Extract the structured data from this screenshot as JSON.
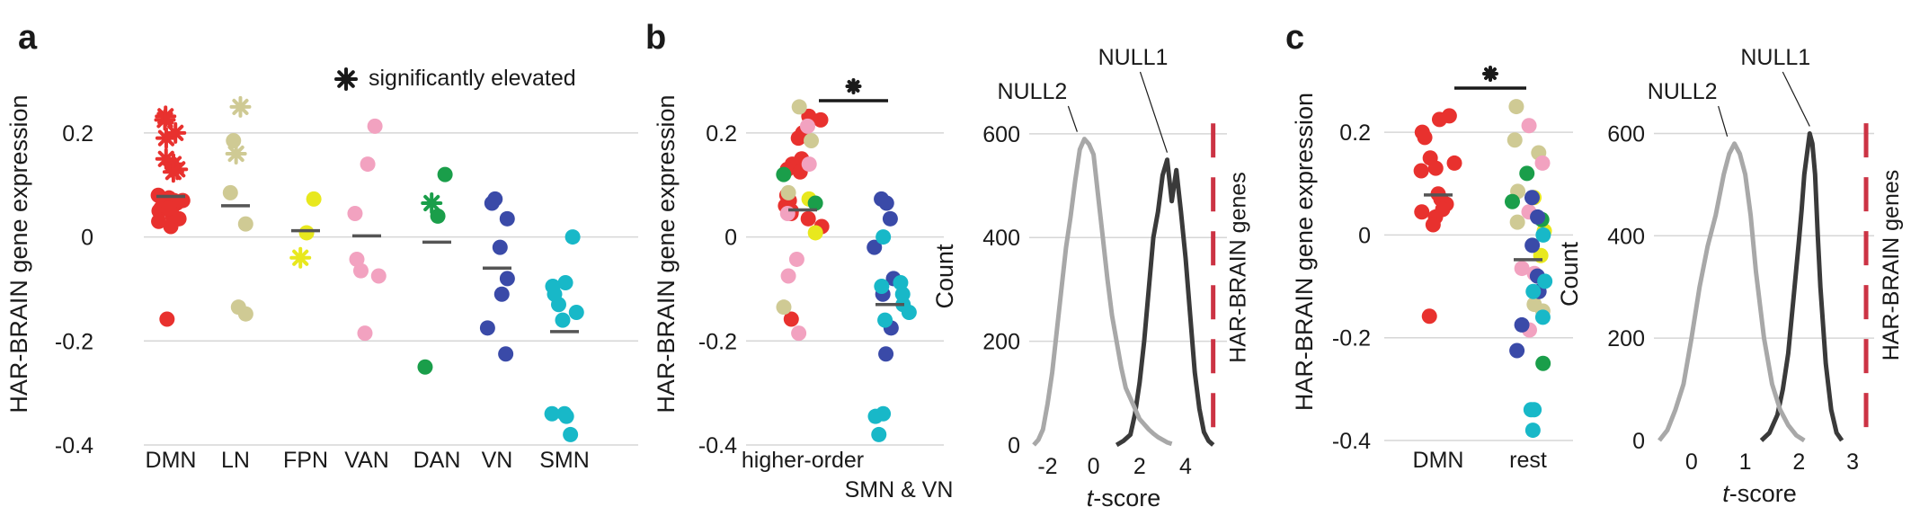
{
  "colors": {
    "DMN": "#e8312e",
    "LN": "#cfca94",
    "FPN": "#e8e81e",
    "VAN": "#f2a2c0",
    "DAN": "#1a9e4a",
    "VN": "#3a4aa8",
    "SMN": "#18b8c8",
    "mean": "#555555",
    "null1": "#3a3a3a",
    "null2": "#a8a8a8",
    "har": "#cc3344",
    "grid": "#d6d6d6"
  },
  "panels": {
    "a": {
      "letter": "a"
    },
    "b": {
      "letter": "b"
    },
    "c": {
      "letter": "c"
    }
  },
  "legend": {
    "text": "significantly elevated",
    "icon": "asterisk-icon"
  },
  "chart_data": [
    {
      "id": "a",
      "type": "scatter",
      "ylabel": "HAR-BRAIN gene expression",
      "ylim": [
        -0.4,
        0.3
      ],
      "yticks": [
        0.2,
        0,
        -0.2,
        -0.4
      ],
      "ytick_labels": [
        "0.2",
        "0",
        "-0.2",
        "-0.4"
      ],
      "grid": true,
      "categories": [
        "DMN",
        "LN",
        "FPN",
        "VAN",
        "DAN",
        "VN",
        "SMN"
      ],
      "groups": [
        {
          "name": "DMN",
          "mean": 0.078,
          "points": [
            0.035,
            0.045,
            0.05,
            0.055,
            0.06,
            0.07,
            0.075,
            0.08,
            0.02,
            0.04,
            0.065,
            0.07,
            0.03,
            0.055,
            -0.158
          ],
          "elevated": [
            0.232,
            0.225,
            0.2,
            0.19,
            0.15,
            0.14,
            0.13,
            0.125
          ]
        },
        {
          "name": "LN",
          "mean": 0.06,
          "points": [
            0.185,
            0.085,
            0.025,
            -0.135,
            -0.148
          ],
          "elevated": [
            0.25,
            0.16
          ]
        },
        {
          "name": "FPN",
          "mean": 0.012,
          "points": [
            0.073,
            0.008
          ],
          "elevated": [
            -0.04
          ]
        },
        {
          "name": "VAN",
          "mean": 0.002,
          "points": [
            0.213,
            0.14,
            0.045,
            -0.043,
            -0.065,
            -0.075,
            -0.185
          ],
          "elevated": []
        },
        {
          "name": "DAN",
          "mean": -0.01,
          "points": [
            0.12,
            0.04,
            -0.25
          ],
          "elevated": [
            0.065
          ]
        },
        {
          "name": "VN",
          "mean": -0.06,
          "points": [
            0.073,
            0.065,
            0.035,
            -0.02,
            -0.08,
            -0.11,
            -0.175,
            -0.225
          ],
          "elevated": []
        },
        {
          "name": "SMN",
          "mean": -0.182,
          "points": [
            0.0,
            -0.088,
            -0.095,
            -0.11,
            -0.13,
            -0.145,
            -0.16,
            -0.34,
            -0.34,
            -0.345,
            -0.38
          ],
          "elevated": []
        }
      ]
    },
    {
      "id": "b",
      "type": "scatter",
      "ylabel": "HAR-BRAIN gene expression",
      "ylim": [
        -0.4,
        0.3
      ],
      "yticks": [
        0.2,
        0,
        -0.2,
        -0.4
      ],
      "ytick_labels": [
        "0.2",
        "0",
        "-0.2",
        "-0.4"
      ],
      "grid": true,
      "categories": [
        "higher-order",
        "SMN & VN"
      ],
      "significance": true,
      "groups": [
        {
          "name": "higher-order",
          "mean": 0.052,
          "points": [
            {
              "v": 0.232,
              "g": "DMN"
            },
            {
              "v": 0.225,
              "g": "DMN"
            },
            {
              "v": 0.2,
              "g": "DMN"
            },
            {
              "v": 0.19,
              "g": "DMN"
            },
            {
              "v": 0.15,
              "g": "DMN"
            },
            {
              "v": 0.14,
              "g": "DMN"
            },
            {
              "v": 0.13,
              "g": "DMN"
            },
            {
              "v": 0.125,
              "g": "DMN"
            },
            {
              "v": 0.08,
              "g": "DMN"
            },
            {
              "v": 0.07,
              "g": "DMN"
            },
            {
              "v": 0.06,
              "g": "DMN"
            },
            {
              "v": 0.05,
              "g": "DMN"
            },
            {
              "v": 0.045,
              "g": "DMN"
            },
            {
              "v": 0.035,
              "g": "DMN"
            },
            {
              "v": 0.02,
              "g": "DMN"
            },
            {
              "v": -0.158,
              "g": "DMN"
            },
            {
              "v": 0.25,
              "g": "LN"
            },
            {
              "v": 0.185,
              "g": "LN"
            },
            {
              "v": 0.085,
              "g": "LN"
            },
            {
              "v": -0.135,
              "g": "LN"
            },
            {
              "v": 0.073,
              "g": "FPN"
            },
            {
              "v": 0.008,
              "g": "FPN"
            },
            {
              "v": 0.213,
              "g": "VAN"
            },
            {
              "v": 0.14,
              "g": "VAN"
            },
            {
              "v": 0.045,
              "g": "VAN"
            },
            {
              "v": -0.043,
              "g": "VAN"
            },
            {
              "v": -0.075,
              "g": "VAN"
            },
            {
              "v": -0.185,
              "g": "VAN"
            },
            {
              "v": 0.12,
              "g": "DAN"
            },
            {
              "v": 0.065,
              "g": "DAN"
            }
          ]
        },
        {
          "name": "SMN & VN",
          "mean": -0.13,
          "points": [
            {
              "v": 0.073,
              "g": "VN"
            },
            {
              "v": 0.065,
              "g": "VN"
            },
            {
              "v": 0.035,
              "g": "VN"
            },
            {
              "v": -0.02,
              "g": "VN"
            },
            {
              "v": -0.08,
              "g": "VN"
            },
            {
              "v": -0.11,
              "g": "VN"
            },
            {
              "v": -0.175,
              "g": "VN"
            },
            {
              "v": -0.225,
              "g": "VN"
            },
            {
              "v": 0.0,
              "g": "SMN"
            },
            {
              "v": -0.088,
              "g": "SMN"
            },
            {
              "v": -0.095,
              "g": "SMN"
            },
            {
              "v": -0.11,
              "g": "SMN"
            },
            {
              "v": -0.13,
              "g": "SMN"
            },
            {
              "v": -0.145,
              "g": "SMN"
            },
            {
              "v": -0.16,
              "g": "SMN"
            },
            {
              "v": -0.34,
              "g": "SMN"
            },
            {
              "v": -0.345,
              "g": "SMN"
            },
            {
              "v": -0.38,
              "g": "SMN"
            }
          ]
        }
      ]
    },
    {
      "id": "b2",
      "type": "line",
      "xlabel": "t-score",
      "xlabel_main": "t",
      "xlabel_rest": "-score",
      "ylabel": "Count",
      "xlim": [
        -2.8,
        5.8
      ],
      "ylim": [
        0,
        650
      ],
      "xticks": [
        -2,
        0,
        2,
        4
      ],
      "xtick_labels": [
        "-2",
        "0",
        "2",
        "4"
      ],
      "yticks": [
        0,
        200,
        400,
        600
      ],
      "ytick_labels": [
        "0",
        "200",
        "400",
        "600"
      ],
      "grid": true,
      "series": [
        {
          "name": "NULL1",
          "x": [
            1.0,
            1.3,
            1.6,
            1.8,
            2.0,
            2.2,
            2.4,
            2.6,
            2.8,
            3.0,
            3.2,
            3.4,
            3.6,
            3.8,
            4.0,
            4.2,
            4.4,
            4.6,
            4.8,
            5.0,
            5.2
          ],
          "y": [
            0,
            8,
            20,
            60,
            120,
            200,
            300,
            400,
            450,
            520,
            550,
            470,
            530,
            450,
            360,
            250,
            140,
            70,
            25,
            8,
            0
          ]
        },
        {
          "name": "NULL2",
          "x": [
            -2.6,
            -2.4,
            -2.2,
            -2.0,
            -1.8,
            -1.6,
            -1.4,
            -1.2,
            -1.0,
            -0.8,
            -0.6,
            -0.4,
            -0.2,
            0.0,
            0.2,
            0.4,
            0.6,
            0.8,
            1.0,
            1.2,
            1.4,
            1.6,
            1.8,
            2.0,
            2.2,
            2.4,
            2.6,
            2.8,
            3.0,
            3.2,
            3.4
          ],
          "y": [
            0,
            10,
            30,
            80,
            140,
            220,
            300,
            380,
            440,
            510,
            570,
            590,
            580,
            560,
            480,
            400,
            320,
            250,
            200,
            150,
            110,
            90,
            70,
            50,
            40,
            30,
            22,
            15,
            10,
            5,
            2
          ]
        }
      ],
      "har_line_x": 5.2,
      "har_label": "HAR-BRAIN genes"
    },
    {
      "id": "c",
      "type": "scatter",
      "ylabel": "HAR-BRAIN gene expression",
      "ylim": [
        -0.4,
        0.3
      ],
      "yticks": [
        0.2,
        0,
        -0.2,
        -0.4
      ],
      "ytick_labels": [
        "0.2",
        "0",
        "-0.2",
        "-0.4"
      ],
      "grid": true,
      "categories": [
        "DMN",
        "rest"
      ],
      "significance": true,
      "groups": [
        {
          "name": "DMN",
          "mean": 0.078,
          "points": [
            {
              "v": 0.232,
              "g": "DMN"
            },
            {
              "v": 0.225,
              "g": "DMN"
            },
            {
              "v": 0.2,
              "g": "DMN"
            },
            {
              "v": 0.19,
              "g": "DMN"
            },
            {
              "v": 0.15,
              "g": "DMN"
            },
            {
              "v": 0.14,
              "g": "DMN"
            },
            {
              "v": 0.13,
              "g": "DMN"
            },
            {
              "v": 0.125,
              "g": "DMN"
            },
            {
              "v": 0.08,
              "g": "DMN"
            },
            {
              "v": 0.07,
              "g": "DMN"
            },
            {
              "v": 0.06,
              "g": "DMN"
            },
            {
              "v": 0.05,
              "g": "DMN"
            },
            {
              "v": 0.045,
              "g": "DMN"
            },
            {
              "v": 0.035,
              "g": "DMN"
            },
            {
              "v": 0.02,
              "g": "DMN"
            },
            {
              "v": -0.158,
              "g": "DMN"
            }
          ]
        },
        {
          "name": "rest",
          "mean": -0.048,
          "points": [
            {
              "v": 0.25,
              "g": "LN"
            },
            {
              "v": 0.185,
              "g": "LN"
            },
            {
              "v": 0.16,
              "g": "LN"
            },
            {
              "v": 0.085,
              "g": "LN"
            },
            {
              "v": 0.025,
              "g": "LN"
            },
            {
              "v": -0.135,
              "g": "LN"
            },
            {
              "v": -0.148,
              "g": "LN"
            },
            {
              "v": 0.073,
              "g": "FPN"
            },
            {
              "v": 0.008,
              "g": "FPN"
            },
            {
              "v": -0.04,
              "g": "FPN"
            },
            {
              "v": 0.213,
              "g": "VAN"
            },
            {
              "v": 0.14,
              "g": "VAN"
            },
            {
              "v": 0.045,
              "g": "VAN"
            },
            {
              "v": -0.065,
              "g": "VAN"
            },
            {
              "v": -0.075,
              "g": "VAN"
            },
            {
              "v": -0.185,
              "g": "VAN"
            },
            {
              "v": 0.12,
              "g": "DAN"
            },
            {
              "v": 0.065,
              "g": "DAN"
            },
            {
              "v": 0.03,
              "g": "DAN"
            },
            {
              "v": -0.25,
              "g": "DAN"
            },
            {
              "v": 0.073,
              "g": "VN"
            },
            {
              "v": 0.035,
              "g": "VN"
            },
            {
              "v": -0.02,
              "g": "VN"
            },
            {
              "v": -0.08,
              "g": "VN"
            },
            {
              "v": -0.11,
              "g": "VN"
            },
            {
              "v": -0.175,
              "g": "VN"
            },
            {
              "v": -0.225,
              "g": "VN"
            },
            {
              "v": 0.0,
              "g": "SMN"
            },
            {
              "v": -0.09,
              "g": "SMN"
            },
            {
              "v": -0.11,
              "g": "SMN"
            },
            {
              "v": -0.16,
              "g": "SMN"
            },
            {
              "v": -0.34,
              "g": "SMN"
            },
            {
              "v": -0.34,
              "g": "SMN"
            },
            {
              "v": -0.38,
              "g": "SMN"
            }
          ]
        }
      ]
    },
    {
      "id": "c2",
      "type": "line",
      "xlabel": "t-score",
      "xlabel_main": "t",
      "xlabel_rest": "-score",
      "ylabel": "Count",
      "xlim": [
        -0.7,
        3.4
      ],
      "ylim": [
        0,
        650
      ],
      "xticks": [
        0,
        1,
        2,
        3
      ],
      "xtick_labels": [
        "0",
        "1",
        "2",
        "3"
      ],
      "yticks": [
        0,
        200,
        400,
        600
      ],
      "ytick_labels": [
        "0",
        "200",
        "400",
        "600"
      ],
      "grid": true,
      "series": [
        {
          "name": "NULL1",
          "x": [
            1.3,
            1.45,
            1.6,
            1.7,
            1.8,
            1.9,
            2.0,
            2.05,
            2.1,
            2.15,
            2.2,
            2.25,
            2.3,
            2.35,
            2.4,
            2.5,
            2.6,
            2.7,
            2.8
          ],
          "y": [
            0,
            15,
            50,
            100,
            170,
            280,
            390,
            450,
            520,
            560,
            600,
            580,
            520,
            400,
            300,
            150,
            60,
            15,
            0
          ]
        },
        {
          "name": "NULL2",
          "x": [
            -0.6,
            -0.45,
            -0.3,
            -0.15,
            0.0,
            0.15,
            0.3,
            0.45,
            0.6,
            0.7,
            0.8,
            0.9,
            1.0,
            1.1,
            1.2,
            1.35,
            1.5,
            1.65,
            1.8,
            1.95,
            2.1
          ],
          "y": [
            0,
            20,
            60,
            110,
            200,
            300,
            380,
            440,
            520,
            560,
            580,
            560,
            520,
            440,
            330,
            200,
            110,
            60,
            30,
            10,
            0
          ]
        }
      ],
      "har_line_x": 3.25,
      "har_label": "HAR-BRAIN genes"
    }
  ]
}
